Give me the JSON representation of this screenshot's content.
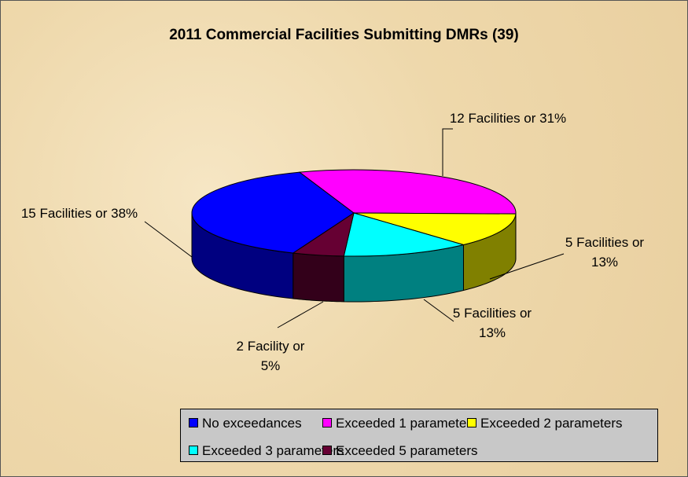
{
  "chart_data": {
    "type": "pie3d",
    "title": "2011 Commercial Facilities Submitting DMRs (39)",
    "categories": [
      "No exceedances",
      "Exceeded 1 parameter",
      "Exceeded 2 parameters",
      "Exceeded 3 parameters",
      "Exceeded 5 parameters"
    ],
    "values": [
      15,
      12,
      5,
      5,
      2
    ],
    "value_labels": [
      "15 Facilities or 38%",
      "12 Facilities or 31%",
      "5 Facilities or 13%",
      "5 Facilities or 13%",
      "2 Facility or 5%"
    ],
    "colors": [
      "#0000ff",
      "#ff00ff",
      "#ffff00",
      "#00ffff",
      "#660033"
    ],
    "legend": "bottom"
  }
}
